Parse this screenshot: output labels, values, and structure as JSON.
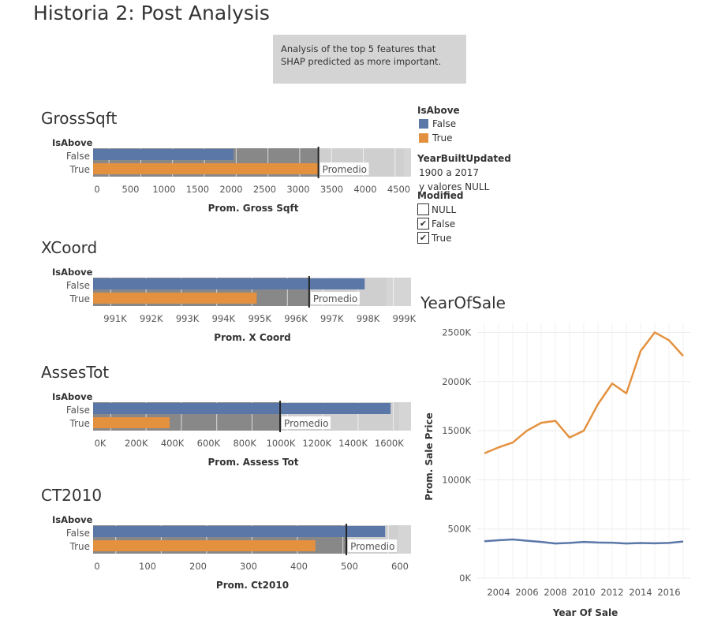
{
  "page_title": "Historia 2: Post Analysis",
  "caption": "Analysis of the top 5 features that SHAP predicted as more important.",
  "colors": {
    "false": "#5b77a8",
    "true": "#e4913f",
    "track_dark": "#888888",
    "track_light": "#d5d5d5"
  },
  "legend": {
    "title": "IsAbove",
    "items": [
      {
        "label": "False",
        "color": "#5b77a8"
      },
      {
        "label": "True",
        "color": "#e4913f"
      }
    ]
  },
  "filter": {
    "title": "YearBuiltUpdated",
    "line1": "1900 a 2017",
    "line2": "y valores NULL"
  },
  "modified": {
    "title": "Modified",
    "options": [
      {
        "label": "NULL",
        "checked": ""
      },
      {
        "label": "False",
        "checked": "✔"
      },
      {
        "label": "True",
        "checked": "✔"
      }
    ]
  },
  "bullet_charts": [
    {
      "title": "GrossSqft",
      "row_header": "IsAbove",
      "row_labels": [
        "False",
        "True"
      ],
      "xlabel": "Prom. Gross Sqft",
      "ref_label": "Promedio",
      "ticks": [
        "0",
        "500",
        "1000",
        "1500",
        "2000",
        "2500",
        "3000",
        "3500",
        "4000",
        "4500"
      ]
    },
    {
      "title": "XCoord",
      "row_header": "IsAbove",
      "row_labels": [
        "False",
        "True"
      ],
      "xlabel": "Prom. X Coord",
      "ref_label": "Promedio",
      "ticks": [
        "991K",
        "992K",
        "993K",
        "994K",
        "995K",
        "996K",
        "997K",
        "998K",
        "999K"
      ]
    },
    {
      "title": "AssesTot",
      "row_header": "IsAbove",
      "row_labels": [
        "False",
        "True"
      ],
      "xlabel": "Prom. Assess Tot",
      "ref_label": "Promedio",
      "ticks": [
        "0K",
        "200K",
        "400K",
        "600K",
        "800K",
        "1000K",
        "1200K",
        "1400K",
        "1600K"
      ]
    },
    {
      "title": "CT2010",
      "row_header": "IsAbove",
      "row_labels": [
        "False",
        "True"
      ],
      "xlabel": "Prom. Ct2010",
      "ref_label": "Promedio",
      "ticks": [
        "0",
        "100",
        "200",
        "300",
        "400",
        "500",
        "600"
      ]
    }
  ],
  "chart_data": [
    {
      "type": "bar",
      "title": "GrossSqft",
      "xlabel": "Prom. Gross Sqft",
      "categories": [
        "False",
        "True"
      ],
      "values": [
        2030,
        3260
      ],
      "reference_line": {
        "label": "Promedio",
        "value": 3260
      },
      "band_end": 4500,
      "xlim": [
        0,
        4600
      ]
    },
    {
      "type": "bar",
      "title": "XCoord",
      "xlabel": "Prom. X Coord",
      "categories": [
        "False",
        "True"
      ],
      "values": [
        998800,
        995300
      ],
      "reference_line": {
        "label": "Promedio",
        "value": 997000
      },
      "band_end": 999500,
      "xlim": [
        990000,
        1000300
      ]
    },
    {
      "type": "bar",
      "title": "AssesTot",
      "xlabel": "Prom. Assess Tot",
      "categories": [
        "False",
        "True"
      ],
      "values": [
        1750000,
        450000
      ],
      "reference_line": {
        "label": "Promedio",
        "value": 1100000
      },
      "band_end": 1800000,
      "xlim": [
        0,
        1870000
      ]
    },
    {
      "type": "bar",
      "title": "CT2010",
      "xlabel": "Prom. Ct2010",
      "categories": [
        "False",
        "True"
      ],
      "values": [
        565,
        430
      ],
      "reference_line": {
        "label": "Promedio",
        "value": 490
      },
      "band_end": 590,
      "xlim": [
        0,
        615
      ]
    },
    {
      "type": "line",
      "title": "YearOfSale",
      "xlabel": "Year Of Sale",
      "ylabel": "Prom. Sale Price",
      "xlim": [
        2002.5,
        2017.5
      ],
      "ylim": [
        0,
        2600000
      ],
      "x_ticks": [
        "2004",
        "2006",
        "2008",
        "2010",
        "2012",
        "2014",
        "2016"
      ],
      "y_ticks": [
        "0K",
        "500K",
        "1000K",
        "1500K",
        "2000K",
        "2500K"
      ],
      "series": [
        {
          "name": "True",
          "color": "#e4913f",
          "x": [
            2003,
            2004,
            2005,
            2006,
            2007,
            2008,
            2009,
            2010,
            2011,
            2012,
            2013,
            2014,
            2015,
            2016,
            2017
          ],
          "values": [
            1270000,
            1330000,
            1380000,
            1500000,
            1580000,
            1600000,
            1430000,
            1500000,
            1770000,
            1980000,
            1880000,
            2310000,
            2500000,
            2420000,
            2260000
          ]
        },
        {
          "name": "False",
          "color": "#5b77a8",
          "x": [
            2003,
            2004,
            2005,
            2006,
            2007,
            2008,
            2009,
            2010,
            2011,
            2012,
            2013,
            2014,
            2015,
            2016,
            2017
          ],
          "values": [
            375000,
            385000,
            393000,
            380000,
            368000,
            352000,
            358000,
            368000,
            362000,
            360000,
            352000,
            357000,
            354000,
            358000,
            372000
          ]
        }
      ]
    }
  ]
}
